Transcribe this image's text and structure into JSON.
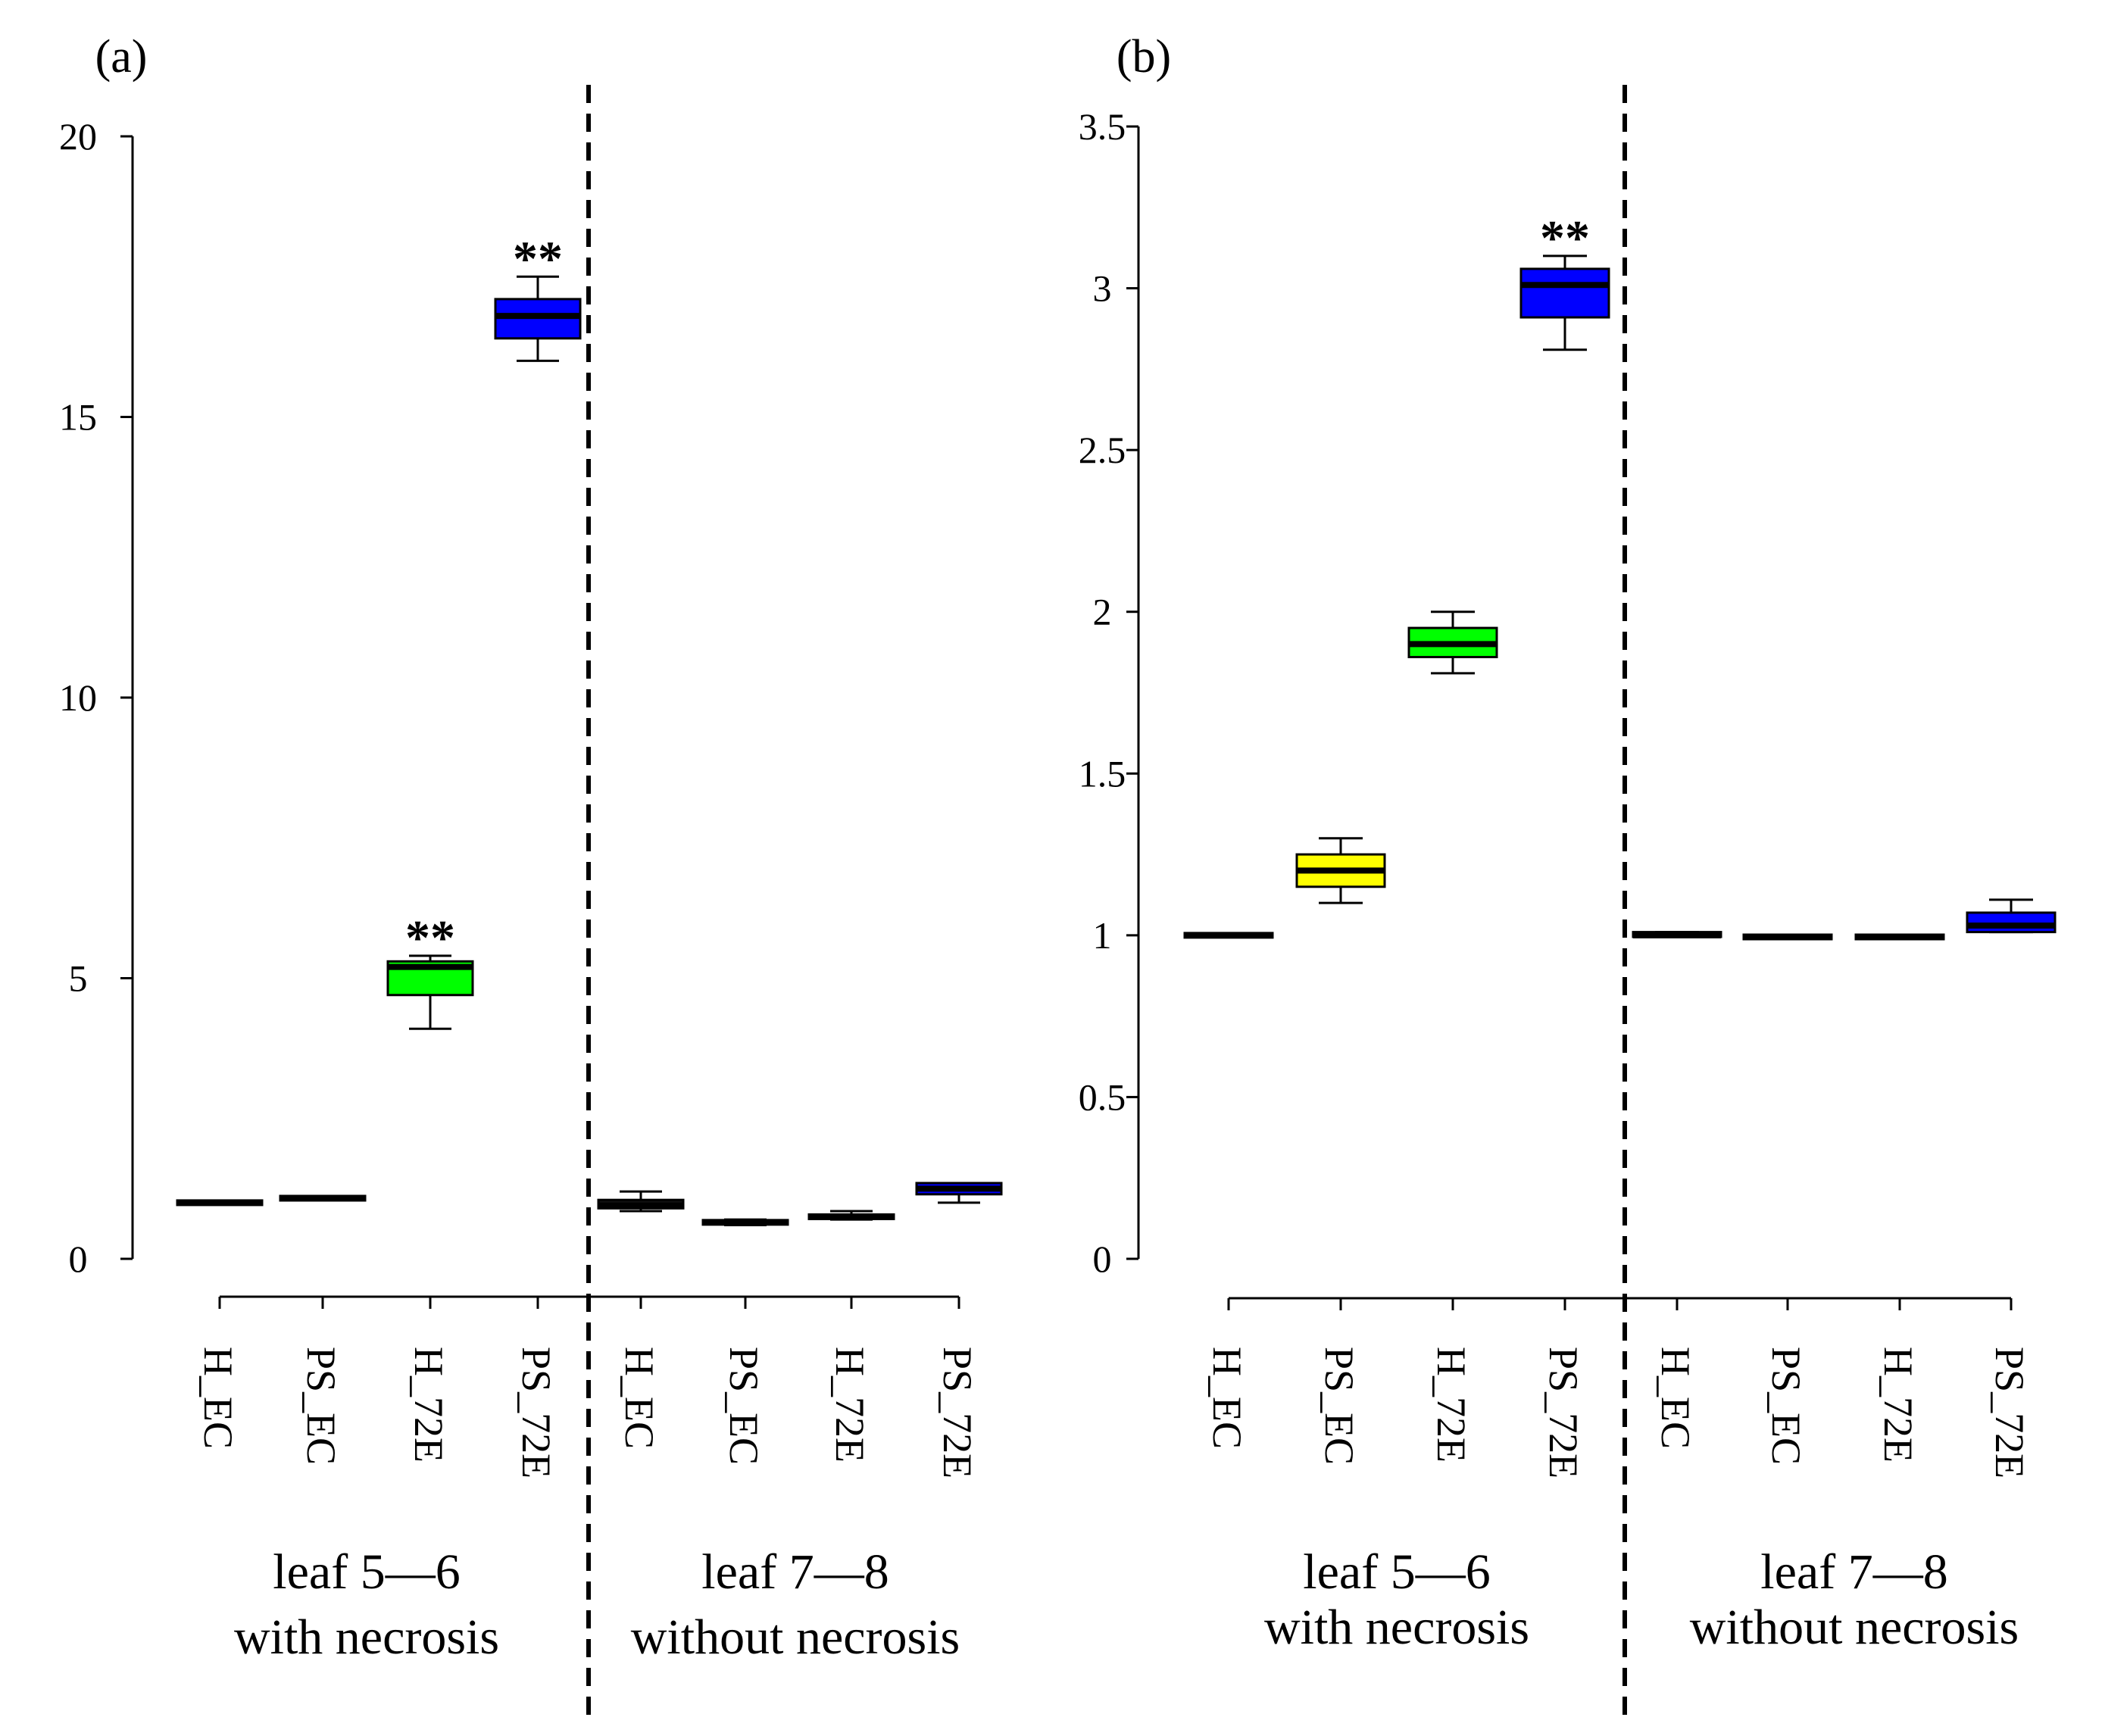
{
  "figure": {
    "group_labels": [
      "leaf 5—6",
      "with necrosis",
      "leaf 7—8",
      "without necrosis"
    ],
    "category_labels": [
      "H_EC",
      "PS_EC",
      "H_72E",
      "PS_72E",
      "H_EC",
      "PS_EC",
      "H_72E",
      "PS_72E"
    ]
  },
  "chart_data": [
    {
      "type": "box",
      "panel_label": "(a)",
      "ylim": [
        0,
        20
      ],
      "yticks": [
        0,
        5,
        10,
        15,
        20
      ],
      "ytick_labels": [
        "0",
        "5",
        "10",
        "15",
        "20"
      ],
      "groups": [
        {
          "line1": "leaf 5—6",
          "line2": "with necrosis"
        },
        {
          "line1": "leaf 7—8",
          "line2": "without necrosis"
        }
      ],
      "categories": [
        "H_EC",
        "PS_EC",
        "H_72E",
        "PS_72E",
        "H_EC",
        "PS_EC",
        "H_72E",
        "PS_72E"
      ],
      "boxes": [
        {
          "category": "H_EC",
          "group": "leaf 5—6",
          "color": "#111111",
          "whisker_low": 0.97,
          "q1": 0.98,
          "median": 1.0,
          "q3": 1.02,
          "whisker_high": 1.03,
          "annotation": ""
        },
        {
          "category": "PS_EC",
          "group": "leaf 5—6",
          "color": "#111111",
          "whisker_low": 1.05,
          "q1": 1.06,
          "median": 1.08,
          "q3": 1.1,
          "whisker_high": 1.11,
          "annotation": ""
        },
        {
          "category": "H_72E",
          "group": "leaf 5—6",
          "color": "#00ff00",
          "whisker_low": 4.1,
          "q1": 4.7,
          "median": 5.2,
          "q3": 5.3,
          "whisker_high": 5.4,
          "annotation": "**"
        },
        {
          "category": "PS_72E",
          "group": "leaf 5—6",
          "color": "#0000ff",
          "whisker_low": 16.0,
          "q1": 16.4,
          "median": 16.8,
          "q3": 17.1,
          "whisker_high": 17.5,
          "annotation": "**"
        },
        {
          "category": "H_EC",
          "group": "leaf 7—8",
          "color": "#111111",
          "whisker_low": 0.85,
          "q1": 0.9,
          "median": 0.95,
          "q3": 1.05,
          "whisker_high": 1.2,
          "annotation": ""
        },
        {
          "category": "PS_EC",
          "group": "leaf 7—8",
          "color": "#111111",
          "whisker_low": 0.6,
          "q1": 0.62,
          "median": 0.65,
          "q3": 0.68,
          "whisker_high": 0.7,
          "annotation": ""
        },
        {
          "category": "H_72E",
          "group": "leaf 7—8",
          "color": "#111111",
          "whisker_low": 0.7,
          "q1": 0.72,
          "median": 0.75,
          "q3": 0.78,
          "whisker_high": 0.85,
          "annotation": ""
        },
        {
          "category": "PS_72E",
          "group": "leaf 7—8",
          "color": "#0000ff",
          "whisker_low": 1.0,
          "q1": 1.15,
          "median": 1.25,
          "q3": 1.35,
          "whisker_high": 1.35,
          "annotation": ""
        }
      ]
    },
    {
      "type": "box",
      "panel_label": "(b)",
      "ylim": [
        0,
        3.5
      ],
      "yticks": [
        0,
        0.5,
        1,
        1.5,
        2,
        2.5,
        3,
        3.5
      ],
      "ytick_labels": [
        "0",
        "0.5",
        "1",
        "1.5",
        "2",
        "2.5",
        "3",
        "3.5"
      ],
      "groups": [
        {
          "line1": "leaf 5—6",
          "line2": "with necrosis"
        },
        {
          "line1": "leaf 7—8",
          "line2": "without necrosis"
        }
      ],
      "categories": [
        "H_EC",
        "PS_EC",
        "H_72E",
        "PS_72E",
        "H_EC",
        "PS_EC",
        "H_72E",
        "PS_72E"
      ],
      "boxes": [
        {
          "category": "H_EC",
          "group": "leaf 5—6",
          "color": "#111111",
          "whisker_low": 0.995,
          "q1": 0.995,
          "median": 1.0,
          "q3": 1.005,
          "whisker_high": 1.005,
          "annotation": ""
        },
        {
          "category": "PS_EC",
          "group": "leaf 5—6",
          "color": "#ffff00",
          "whisker_low": 1.1,
          "q1": 1.15,
          "median": 1.2,
          "q3": 1.25,
          "whisker_high": 1.3,
          "annotation": ""
        },
        {
          "category": "H_72E",
          "group": "leaf 5—6",
          "color": "#00ff00",
          "whisker_low": 1.81,
          "q1": 1.86,
          "median": 1.9,
          "q3": 1.95,
          "whisker_high": 2.0,
          "annotation": ""
        },
        {
          "category": "PS_72E",
          "group": "leaf 5—6",
          "color": "#0000ff",
          "whisker_low": 2.81,
          "q1": 2.91,
          "median": 3.01,
          "q3": 3.06,
          "whisker_high": 3.1,
          "annotation": "**"
        },
        {
          "category": "H_EC",
          "group": "leaf 7—8",
          "color": "#111111",
          "whisker_low": 0.995,
          "q1": 0.995,
          "median": 1.0,
          "q3": 1.01,
          "whisker_high": 1.01,
          "annotation": ""
        },
        {
          "category": "PS_EC",
          "group": "leaf 7—8",
          "color": "#111111",
          "whisker_low": 0.99,
          "q1": 0.99,
          "median": 0.995,
          "q3": 1.0,
          "whisker_high": 1.0,
          "annotation": ""
        },
        {
          "category": "H_72E",
          "group": "leaf 7—8",
          "color": "#111111",
          "whisker_low": 0.99,
          "q1": 0.99,
          "median": 0.995,
          "q3": 1.0,
          "whisker_high": 1.0,
          "annotation": ""
        },
        {
          "category": "PS_72E",
          "group": "leaf 7—8",
          "color": "#0000ff",
          "whisker_low": 1.01,
          "q1": 1.01,
          "median": 1.03,
          "q3": 1.07,
          "whisker_high": 1.11,
          "annotation": ""
        }
      ]
    }
  ]
}
